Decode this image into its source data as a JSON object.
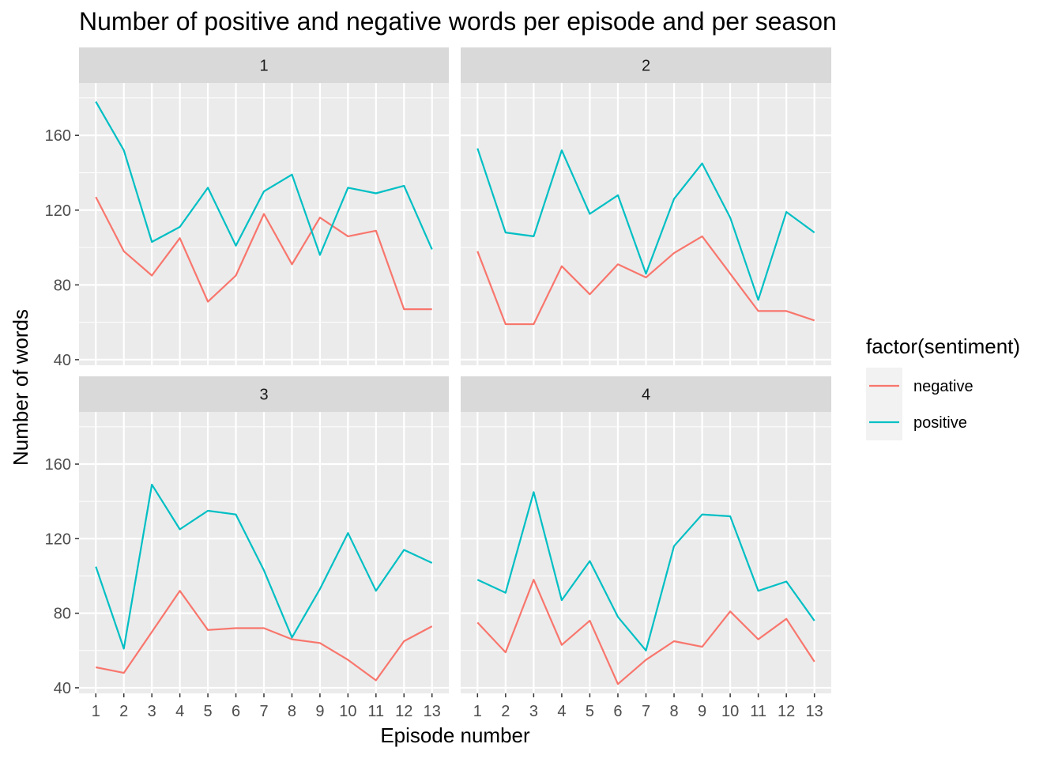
{
  "chart_data": {
    "type": "line",
    "title": "Number of positive and negative words per episode and per season",
    "xlabel": "Episode number",
    "ylabel": "Number of words",
    "x": [
      1,
      2,
      3,
      4,
      5,
      6,
      7,
      8,
      9,
      10,
      11,
      12,
      13
    ],
    "ylim": [
      37,
      188
    ],
    "yticks": [
      40,
      80,
      120,
      160
    ],
    "grid": true,
    "facet_layout": "2x2",
    "legend": {
      "title": "factor(sentiment)",
      "placement": "right",
      "entries": [
        {
          "name": "negative",
          "color": "#F8766D"
        },
        {
          "name": "positive",
          "color": "#00BFC4"
        }
      ]
    },
    "panels": [
      {
        "label": "1",
        "series": [
          {
            "name": "negative",
            "values": [
              127,
              98,
              85,
              105,
              71,
              85,
              118,
              91,
              116,
              106,
              109,
              67,
              67
            ]
          },
          {
            "name": "positive",
            "values": [
              178,
              152,
              103,
              111,
              132,
              101,
              130,
              139,
              96,
              132,
              129,
              133,
              99
            ]
          }
        ]
      },
      {
        "label": "2",
        "series": [
          {
            "name": "negative",
            "values": [
              98,
              59,
              59,
              90,
              75,
              91,
              84,
              97,
              106,
              86,
              66,
              66,
              61
            ]
          },
          {
            "name": "positive",
            "values": [
              153,
              108,
              106,
              152,
              118,
              128,
              86,
              126,
              145,
              116,
              72,
              119,
              108
            ]
          }
        ]
      },
      {
        "label": "3",
        "series": [
          {
            "name": "negative",
            "values": [
              51,
              48,
              70,
              92,
              71,
              72,
              72,
              66,
              64,
              55,
              44,
              65,
              73
            ]
          },
          {
            "name": "positive",
            "values": [
              105,
              61,
              149,
              125,
              135,
              133,
              103,
              67,
              93,
              123,
              92,
              114,
              107
            ]
          }
        ]
      },
      {
        "label": "4",
        "series": [
          {
            "name": "negative",
            "values": [
              75,
              59,
              98,
              63,
              76,
              42,
              55,
              65,
              62,
              81,
              66,
              77,
              54
            ]
          },
          {
            "name": "positive",
            "values": [
              98,
              91,
              145,
              87,
              108,
              78,
              60,
              116,
              133,
              132,
              92,
              97,
              76
            ]
          }
        ]
      }
    ]
  }
}
